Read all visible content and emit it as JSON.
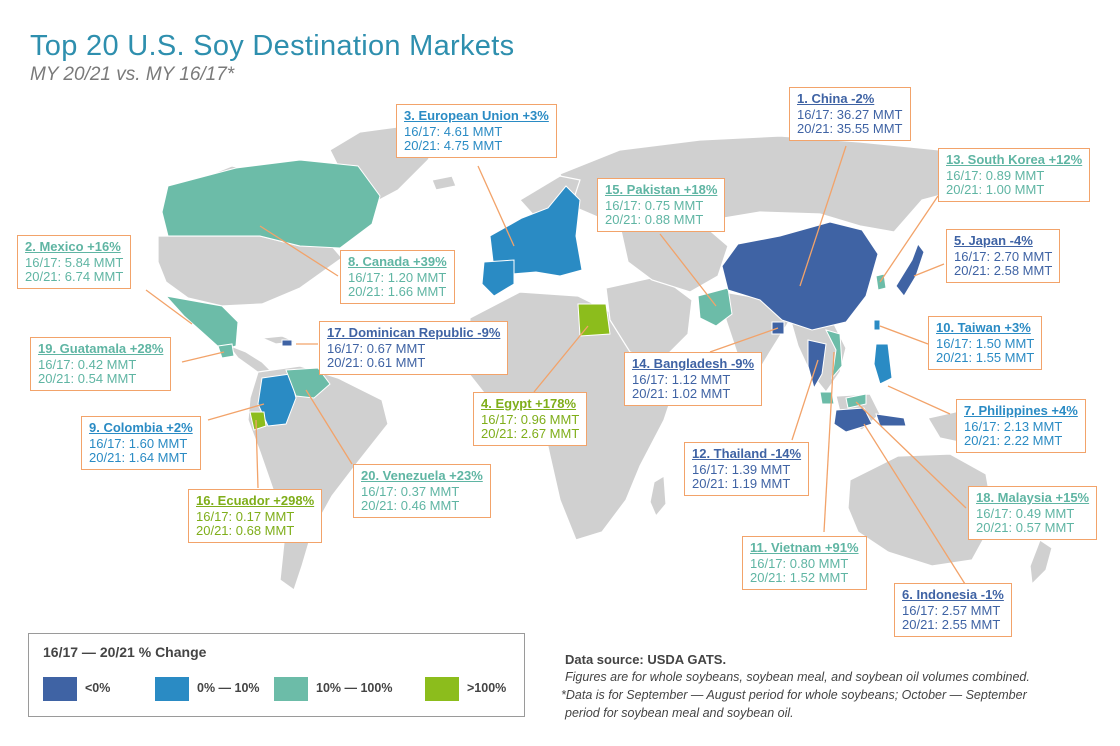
{
  "title": "Top 20 U.S. Soy Destination Markets",
  "subtitle": "MY 20/21 vs. MY 16/17*",
  "colors": {
    "decline": "#3f63a4",
    "growth_0_10": "#2a8bc4",
    "growth_10_100": "#6cbca8",
    "growth_over_100": "#8cbd1c",
    "land": "#d0d0d0",
    "callout_border": "#f2a36a"
  },
  "markets": [
    {
      "rank": 1,
      "name": "China",
      "change": "-2%",
      "label": "1. China -2%",
      "mmt_1617": "16/17: 36.27 MMT",
      "mmt_2021": "20/21: 35.55 MMT",
      "category": "decline"
    },
    {
      "rank": 2,
      "name": "Mexico",
      "change": "+16%",
      "label": "2. Mexico +16%",
      "mmt_1617": "16/17: 5.84 MMT",
      "mmt_2021": "20/21: 6.74 MMT",
      "category": "growth_10_100"
    },
    {
      "rank": 3,
      "name": "European Union",
      "change": "+3%",
      "label": "3. European Union +3%",
      "mmt_1617": "16/17: 4.61 MMT",
      "mmt_2021": "20/21: 4.75 MMT",
      "category": "growth_0_10"
    },
    {
      "rank": 4,
      "name": "Egypt",
      "change": "+178%",
      "label": "4. Egypt +178%",
      "mmt_1617": "16/17: 0.96 MMT",
      "mmt_2021": "20/21: 2.67 MMT",
      "category": "growth_over_100"
    },
    {
      "rank": 5,
      "name": "Japan",
      "change": "-4%",
      "label": "5. Japan -4%",
      "mmt_1617": "16/17: 2.70 MMT",
      "mmt_2021": "20/21: 2.58 MMT",
      "category": "decline"
    },
    {
      "rank": 6,
      "name": "Indonesia",
      "change": "-1%",
      "label": "6. Indonesia -1%",
      "mmt_1617": "16/17: 2.57 MMT",
      "mmt_2021": "20/21: 2.55 MMT",
      "category": "decline"
    },
    {
      "rank": 7,
      "name": "Philippines",
      "change": "+4%",
      "label": "7. Philippines +4%",
      "mmt_1617": "16/17: 2.13 MMT",
      "mmt_2021": "20/21: 2.22 MMT",
      "category": "growth_0_10"
    },
    {
      "rank": 8,
      "name": "Canada",
      "change": "+39%",
      "label": "8. Canada +39%",
      "mmt_1617": "16/17: 1.20 MMT",
      "mmt_2021": "20/21: 1.66 MMT",
      "category": "growth_10_100"
    },
    {
      "rank": 9,
      "name": "Colombia",
      "change": "+2%",
      "label": "9. Colombia +2%",
      "mmt_1617": "16/17: 1.60 MMT",
      "mmt_2021": "20/21: 1.64 MMT",
      "category": "growth_0_10"
    },
    {
      "rank": 10,
      "name": "Taiwan",
      "change": "+3%",
      "label": "10. Taiwan +3%",
      "mmt_1617": "16/17: 1.50 MMT",
      "mmt_2021": "20/21: 1.55 MMT",
      "category": "growth_0_10"
    },
    {
      "rank": 11,
      "name": "Vietnam",
      "change": "+91%",
      "label": "11. Vietnam +91%",
      "mmt_1617": "16/17: 0.80 MMT",
      "mmt_2021": "20/21: 1.52 MMT",
      "category": "growth_10_100"
    },
    {
      "rank": 12,
      "name": "Thailand",
      "change": "-14%",
      "label": "12. Thailand -14%",
      "mmt_1617": "16/17: 1.39 MMT",
      "mmt_2021": "20/21: 1.19 MMT",
      "category": "decline"
    },
    {
      "rank": 13,
      "name": "South Korea",
      "change": "+12%",
      "label": "13. South Korea +12%",
      "mmt_1617": "16/17: 0.89 MMT",
      "mmt_2021": "20/21: 1.00 MMT",
      "category": "growth_10_100"
    },
    {
      "rank": 14,
      "name": "Bangladesh",
      "change": "-9%",
      "label": "14. Bangladesh -9%",
      "mmt_1617": "16/17: 1.12 MMT",
      "mmt_2021": "20/21: 1.02 MMT",
      "category": "decline"
    },
    {
      "rank": 15,
      "name": "Pakistan",
      "change": "+18%",
      "label": "15. Pakistan +18%",
      "mmt_1617": "16/17: 0.75 MMT",
      "mmt_2021": "20/21: 0.88 MMT",
      "category": "growth_10_100"
    },
    {
      "rank": 16,
      "name": "Ecuador",
      "change": "+298%",
      "label": "16. Ecuador +298%",
      "mmt_1617": "16/17: 0.17 MMT",
      "mmt_2021": "20/21: 0.68 MMT",
      "category": "growth_over_100"
    },
    {
      "rank": 17,
      "name": "Dominican Republic",
      "change": "-9%",
      "label": "17. Dominican Republic -9%",
      "mmt_1617": "16/17: 0.67 MMT",
      "mmt_2021": "20/21: 0.61 MMT",
      "category": "decline"
    },
    {
      "rank": 18,
      "name": "Malaysia",
      "change": "+15%",
      "label": "18. Malaysia +15%",
      "mmt_1617": "16/17: 0.49 MMT",
      "mmt_2021": "20/21: 0.57 MMT",
      "category": "growth_10_100"
    },
    {
      "rank": 19,
      "name": "Guatamala",
      "change": "+28%",
      "label": "19. Guatamala +28%",
      "mmt_1617": "16/17: 0.42 MMT",
      "mmt_2021": "20/21: 0.54 MMT",
      "category": "growth_10_100"
    },
    {
      "rank": 20,
      "name": "Venezuela",
      "change": "+23%",
      "label": "20. Venezuela +23%",
      "mmt_1617": "16/17: 0.37 MMT",
      "mmt_2021": "20/21: 0.46 MMT",
      "category": "growth_10_100"
    }
  ],
  "legend": {
    "title": "16/17 — 20/21 % Change",
    "items": [
      {
        "label": "<0%",
        "color": "#3f63a4"
      },
      {
        "label": "0% — 10%",
        "color": "#2a8bc4"
      },
      {
        "label": "10% — 100%",
        "color": "#6cbca8"
      },
      {
        "label": ">100%",
        "color": "#8cbd1c"
      }
    ]
  },
  "source": "Data source: USDA GATS.",
  "notes": [
    "Figures are for whole soybeans, soybean meal, and soybean oil volumes combined.",
    "*Data is for September — August period for whole soybeans; October — September",
    "period for soybean meal and soybean oil."
  ]
}
